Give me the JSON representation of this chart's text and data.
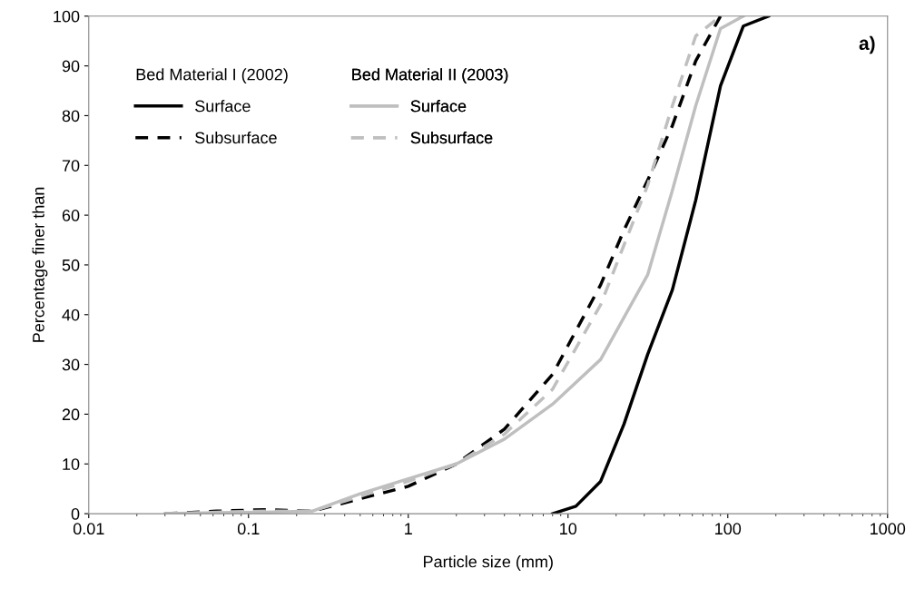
{
  "chart_data": {
    "type": "line",
    "xlabel": "Particle size (mm)",
    "ylabel": "Percentage finer than",
    "log": "x",
    "xlim": [
      0.01,
      1000
    ],
    "xticks": [
      0.01,
      0.1,
      1,
      10,
      100,
      1000
    ],
    "ylim": [
      0,
      100
    ],
    "yticks": [
      0,
      10,
      20,
      30,
      40,
      50,
      60,
      70,
      80,
      90,
      100
    ],
    "grid": false,
    "legend": "top left",
    "legend_title": [
      "Bed Material I (2002)",
      "Bed Material II (2003)"
    ],
    "annotations": [
      "a)"
    ],
    "series": [
      {
        "name": "Surface",
        "color": "#000000",
        "line_style": "solid",
        "x": [
          8,
          11.2,
          16,
          22.4,
          31.5,
          45,
          63,
          90,
          125,
          180
        ],
        "values": [
          0,
          1.5,
          6.5,
          18,
          32,
          45,
          63,
          86,
          98,
          100
        ]
      },
      {
        "name": "Subsurface",
        "color": "#000000",
        "line_style": "dashed",
        "x": [
          0.03,
          0.063,
          0.125,
          0.25,
          0.5,
          1,
          2,
          4,
          8,
          16,
          22.4,
          31.5,
          45,
          63,
          90
        ],
        "values": [
          0,
          0.5,
          0.8,
          0.5,
          3,
          5.5,
          10,
          17,
          28,
          46,
          57,
          67,
          78,
          91,
          100
        ]
      },
      {
        "name": "Surface",
        "color": "#bfbfbf",
        "line_style": "solid",
        "x": [
          0.03,
          0.063,
          0.125,
          0.25,
          0.5,
          1,
          2,
          4,
          8,
          16,
          31.5,
          45,
          63,
          90,
          125
        ],
        "values": [
          0,
          0.2,
          0.3,
          0.5,
          4,
          7,
          10,
          15,
          22,
          31,
          48,
          65,
          82,
          97.5,
          100
        ]
      },
      {
        "name": "Subsurface",
        "color": "#bfbfbf",
        "line_style": "dashed",
        "x": [
          0.03,
          0.063,
          0.125,
          0.25,
          0.5,
          1,
          2,
          4,
          8,
          16,
          22.4,
          31.5,
          45,
          63,
          90
        ],
        "values": [
          0,
          0.3,
          0.5,
          0.5,
          3.5,
          6.5,
          10,
          16,
          25,
          42,
          54,
          66,
          82,
          96,
          100
        ]
      }
    ]
  }
}
